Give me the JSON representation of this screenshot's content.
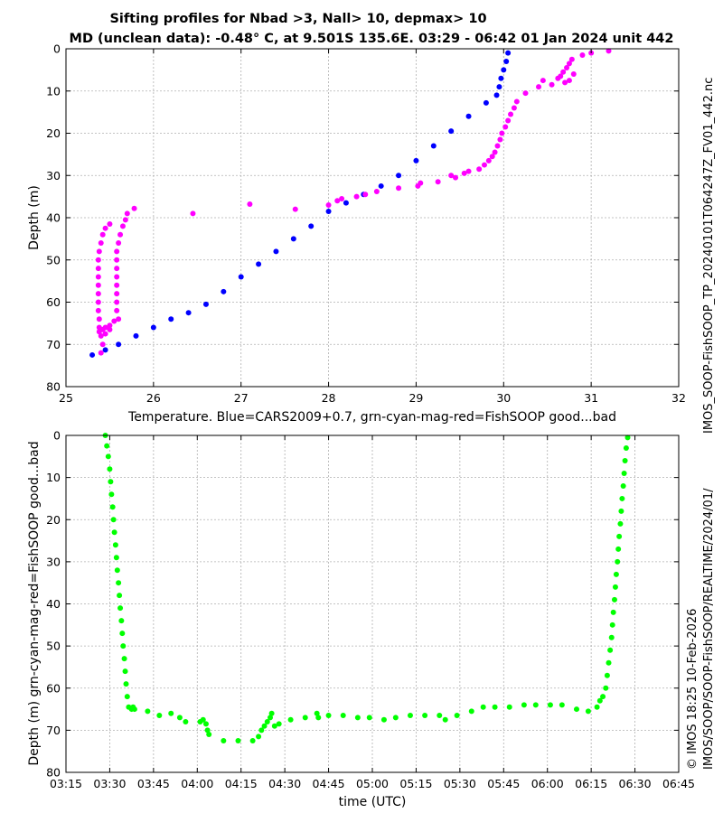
{
  "title_line1": "Sifting profiles for Nbad >3, Nall> 10, depmax> 10",
  "title_line2": "MD (unclean data): -0.48° C, at 9.501S 135.6E. 03:29 - 06:42 01 Jan 2024 unit 442",
  "side_text_top": "IMOS_SOOP-FishSOOP_TP_20240101T064247Z_FV01_442.nc",
  "side_text_bottom": "IMOS/SOOP/SOOP-FishSOOP/REALTIME/2024/01/",
  "side_text_credit": "© IMOS 18:25 10-Feb-2026",
  "colors": {
    "blue": "#0000ff",
    "magenta": "#ff00ff",
    "green": "#00ff00",
    "grid": "#b0b0b0"
  },
  "chart_data": [
    {
      "type": "scatter",
      "xlabel": "Temperature. Blue=CARS2009+0.7, grn-cyan-mag-red=FishSOOP good...bad",
      "ylabel": "Depth (m)",
      "xlim": [
        25,
        32
      ],
      "ylim": [
        0,
        80
      ],
      "y_reversed": true,
      "grid": true,
      "x_ticks": [
        "25",
        "26",
        "27",
        "28",
        "29",
        "30",
        "31",
        "32"
      ],
      "y_ticks": [
        "0",
        "10",
        "20",
        "30",
        "40",
        "50",
        "60",
        "70",
        "80"
      ],
      "series": [
        {
          "color": "blue",
          "points": [
            [
              30.05,
              1
            ],
            [
              30.03,
              3
            ],
            [
              30.0,
              5
            ],
            [
              29.97,
              7
            ],
            [
              29.95,
              9
            ],
            [
              29.92,
              11
            ],
            [
              29.8,
              12.8
            ],
            [
              29.6,
              16
            ],
            [
              29.4,
              19.5
            ],
            [
              29.2,
              23
            ],
            [
              29.0,
              26.5
            ],
            [
              28.8,
              30
            ],
            [
              28.6,
              32.5
            ],
            [
              28.4,
              34.5
            ],
            [
              28.2,
              36.5
            ],
            [
              28.0,
              38.5
            ],
            [
              27.8,
              42
            ],
            [
              27.6,
              45
            ],
            [
              27.4,
              48
            ],
            [
              27.2,
              51
            ],
            [
              27.0,
              54
            ],
            [
              26.8,
              57.5
            ],
            [
              26.6,
              60.5
            ],
            [
              26.4,
              62.5
            ],
            [
              26.2,
              64
            ],
            [
              26.0,
              66
            ],
            [
              25.8,
              68
            ],
            [
              25.6,
              70
            ],
            [
              25.45,
              71.3
            ],
            [
              25.3,
              72.5
            ]
          ]
        },
        {
          "color": "magenta",
          "points": [
            [
              31.2,
              0.5
            ],
            [
              31.0,
              1
            ],
            [
              30.9,
              1.5
            ],
            [
              30.78,
              2.5
            ],
            [
              30.75,
              3.5
            ],
            [
              30.72,
              4.5
            ],
            [
              30.68,
              5.5
            ],
            [
              30.65,
              6.5
            ],
            [
              30.62,
              7
            ],
            [
              30.75,
              7.5
            ],
            [
              30.8,
              6
            ],
            [
              30.7,
              8
            ],
            [
              30.45,
              7.5
            ],
            [
              30.55,
              8.5
            ],
            [
              30.4,
              9
            ],
            [
              30.25,
              10.5
            ],
            [
              30.15,
              12.5
            ],
            [
              30.12,
              14
            ],
            [
              30.08,
              15.5
            ],
            [
              30.05,
              17
            ],
            [
              30.02,
              18.5
            ],
            [
              29.98,
              20
            ],
            [
              29.96,
              21.5
            ],
            [
              29.93,
              23
            ],
            [
              29.9,
              24.5
            ],
            [
              29.87,
              25.5
            ],
            [
              29.83,
              26.5
            ],
            [
              29.78,
              27.5
            ],
            [
              29.72,
              28.5
            ],
            [
              29.6,
              29
            ],
            [
              29.55,
              29.5
            ],
            [
              29.4,
              30
            ],
            [
              29.45,
              30.5
            ],
            [
              29.25,
              31.5
            ],
            [
              29.05,
              31.8
            ],
            [
              29.02,
              32.5
            ],
            [
              28.8,
              33
            ],
            [
              28.55,
              33.8
            ],
            [
              28.42,
              34.5
            ],
            [
              28.32,
              35
            ],
            [
              28.15,
              35.5
            ],
            [
              28.1,
              36
            ],
            [
              28.0,
              37
            ],
            [
              27.62,
              38
            ],
            [
              27.1,
              36.8
            ],
            [
              26.45,
              39
            ],
            [
              25.78,
              37.8
            ],
            [
              25.7,
              39
            ],
            [
              25.68,
              40.5
            ],
            [
              25.65,
              42
            ],
            [
              25.62,
              44
            ],
            [
              25.6,
              46
            ],
            [
              25.58,
              48
            ],
            [
              25.58,
              50
            ],
            [
              25.58,
              52
            ],
            [
              25.58,
              54
            ],
            [
              25.58,
              56
            ],
            [
              25.58,
              58
            ],
            [
              25.58,
              60
            ],
            [
              25.58,
              62
            ],
            [
              25.6,
              64
            ],
            [
              25.55,
              64.5
            ],
            [
              25.5,
              65.5
            ],
            [
              25.45,
              66
            ],
            [
              25.5,
              66.5
            ],
            [
              25.5,
              41.5
            ],
            [
              25.45,
              42.5
            ],
            [
              25.42,
              44
            ],
            [
              25.4,
              46
            ],
            [
              25.38,
              48
            ],
            [
              25.37,
              50
            ],
            [
              25.37,
              52
            ],
            [
              25.37,
              54
            ],
            [
              25.37,
              56
            ],
            [
              25.37,
              58
            ],
            [
              25.37,
              60
            ],
            [
              25.37,
              62
            ],
            [
              25.38,
              64
            ],
            [
              25.38,
              66
            ],
            [
              25.38,
              67
            ],
            [
              25.4,
              68
            ],
            [
              25.42,
              70
            ],
            [
              25.4,
              72
            ],
            [
              25.42,
              66.5
            ],
            [
              25.45,
              67.5
            ]
          ]
        }
      ]
    },
    {
      "type": "scatter",
      "xlabel": "time (UTC)",
      "ylabel": "Depth (m) grn-cyan-mag-red=FishSOOP good...bad",
      "xlim": [
        "03:15",
        "06:45"
      ],
      "ylim": [
        0,
        80
      ],
      "y_reversed": true,
      "grid": true,
      "x_ticks": [
        "03:15",
        "03:30",
        "03:45",
        "04:00",
        "04:15",
        "04:30",
        "04:45",
        "05:00",
        "05:15",
        "05:30",
        "05:45",
        "06:00",
        "06:15",
        "06:30",
        "06:45"
      ],
      "y_ticks": [
        "0",
        "10",
        "20",
        "30",
        "40",
        "50",
        "60",
        "70",
        "80"
      ],
      "series": [
        {
          "color": "green",
          "points_minutes": [
            [
              208.5,
              0
            ],
            [
              209,
              2.5
            ],
            [
              209.5,
              5
            ],
            [
              210,
              8
            ],
            [
              210.3,
              11
            ],
            [
              210.6,
              14
            ],
            [
              211,
              17
            ],
            [
              211.3,
              20
            ],
            [
              211.6,
              23
            ],
            [
              212,
              26
            ],
            [
              212.3,
              29
            ],
            [
              212.6,
              32
            ],
            [
              213,
              35
            ],
            [
              213.3,
              38
            ],
            [
              213.6,
              41
            ],
            [
              214,
              44
            ],
            [
              214.3,
              47
            ],
            [
              214.6,
              50
            ],
            [
              215,
              53
            ],
            [
              215.3,
              56
            ],
            [
              215.6,
              59
            ],
            [
              216,
              62
            ],
            [
              216.5,
              64.5
            ],
            [
              217.5,
              65
            ],
            [
              218,
              64.5
            ],
            [
              218.5,
              65
            ],
            [
              223,
              65.5
            ],
            [
              227,
              66.5
            ],
            [
              231,
              66
            ],
            [
              234,
              67
            ],
            [
              236,
              68
            ],
            [
              241,
              68
            ],
            [
              242,
              67.5
            ],
            [
              243,
              68.5
            ],
            [
              243.5,
              70
            ],
            [
              244,
              71
            ],
            [
              249,
              72.5
            ],
            [
              254,
              72.5
            ],
            [
              259,
              72.5
            ],
            [
              261,
              71.5
            ],
            [
              262,
              70
            ],
            [
              263,
              69
            ],
            [
              264,
              68
            ],
            [
              265,
              67
            ],
            [
              265.5,
              66
            ],
            [
              266.5,
              69
            ],
            [
              268,
              68.5
            ],
            [
              272,
              67.5
            ],
            [
              277,
              67
            ],
            [
              281,
              66
            ],
            [
              281.5,
              67
            ],
            [
              285,
              66.5
            ],
            [
              290,
              66.5
            ],
            [
              295,
              67
            ],
            [
              299,
              67
            ],
            [
              304,
              67.5
            ],
            [
              308,
              67
            ],
            [
              313,
              66.5
            ],
            [
              318,
              66.5
            ],
            [
              323,
              66.5
            ],
            [
              325,
              67.5
            ],
            [
              329,
              66.5
            ],
            [
              334,
              65.5
            ],
            [
              338,
              64.5
            ],
            [
              342,
              64.5
            ],
            [
              347,
              64.5
            ],
            [
              352,
              64
            ],
            [
              356,
              64
            ],
            [
              361,
              64
            ],
            [
              365,
              64
            ],
            [
              370,
              65
            ],
            [
              374,
              65.5
            ],
            [
              377,
              64.5
            ],
            [
              378,
              63
            ],
            [
              379,
              62
            ],
            [
              380,
              60
            ],
            [
              380.5,
              57
            ],
            [
              381,
              54
            ],
            [
              381.5,
              51
            ],
            [
              382,
              48
            ],
            [
              382.3,
              45
            ],
            [
              382.6,
              42
            ],
            [
              383,
              39
            ],
            [
              383.3,
              36
            ],
            [
              383.6,
              33
            ],
            [
              384,
              30
            ],
            [
              384.3,
              27
            ],
            [
              384.6,
              24
            ],
            [
              385,
              21
            ],
            [
              385.3,
              18
            ],
            [
              385.6,
              15
            ],
            [
              386,
              12
            ],
            [
              386.3,
              9
            ],
            [
              386.6,
              6
            ],
            [
              387,
              3
            ],
            [
              387.5,
              0.5
            ]
          ]
        }
      ]
    }
  ]
}
